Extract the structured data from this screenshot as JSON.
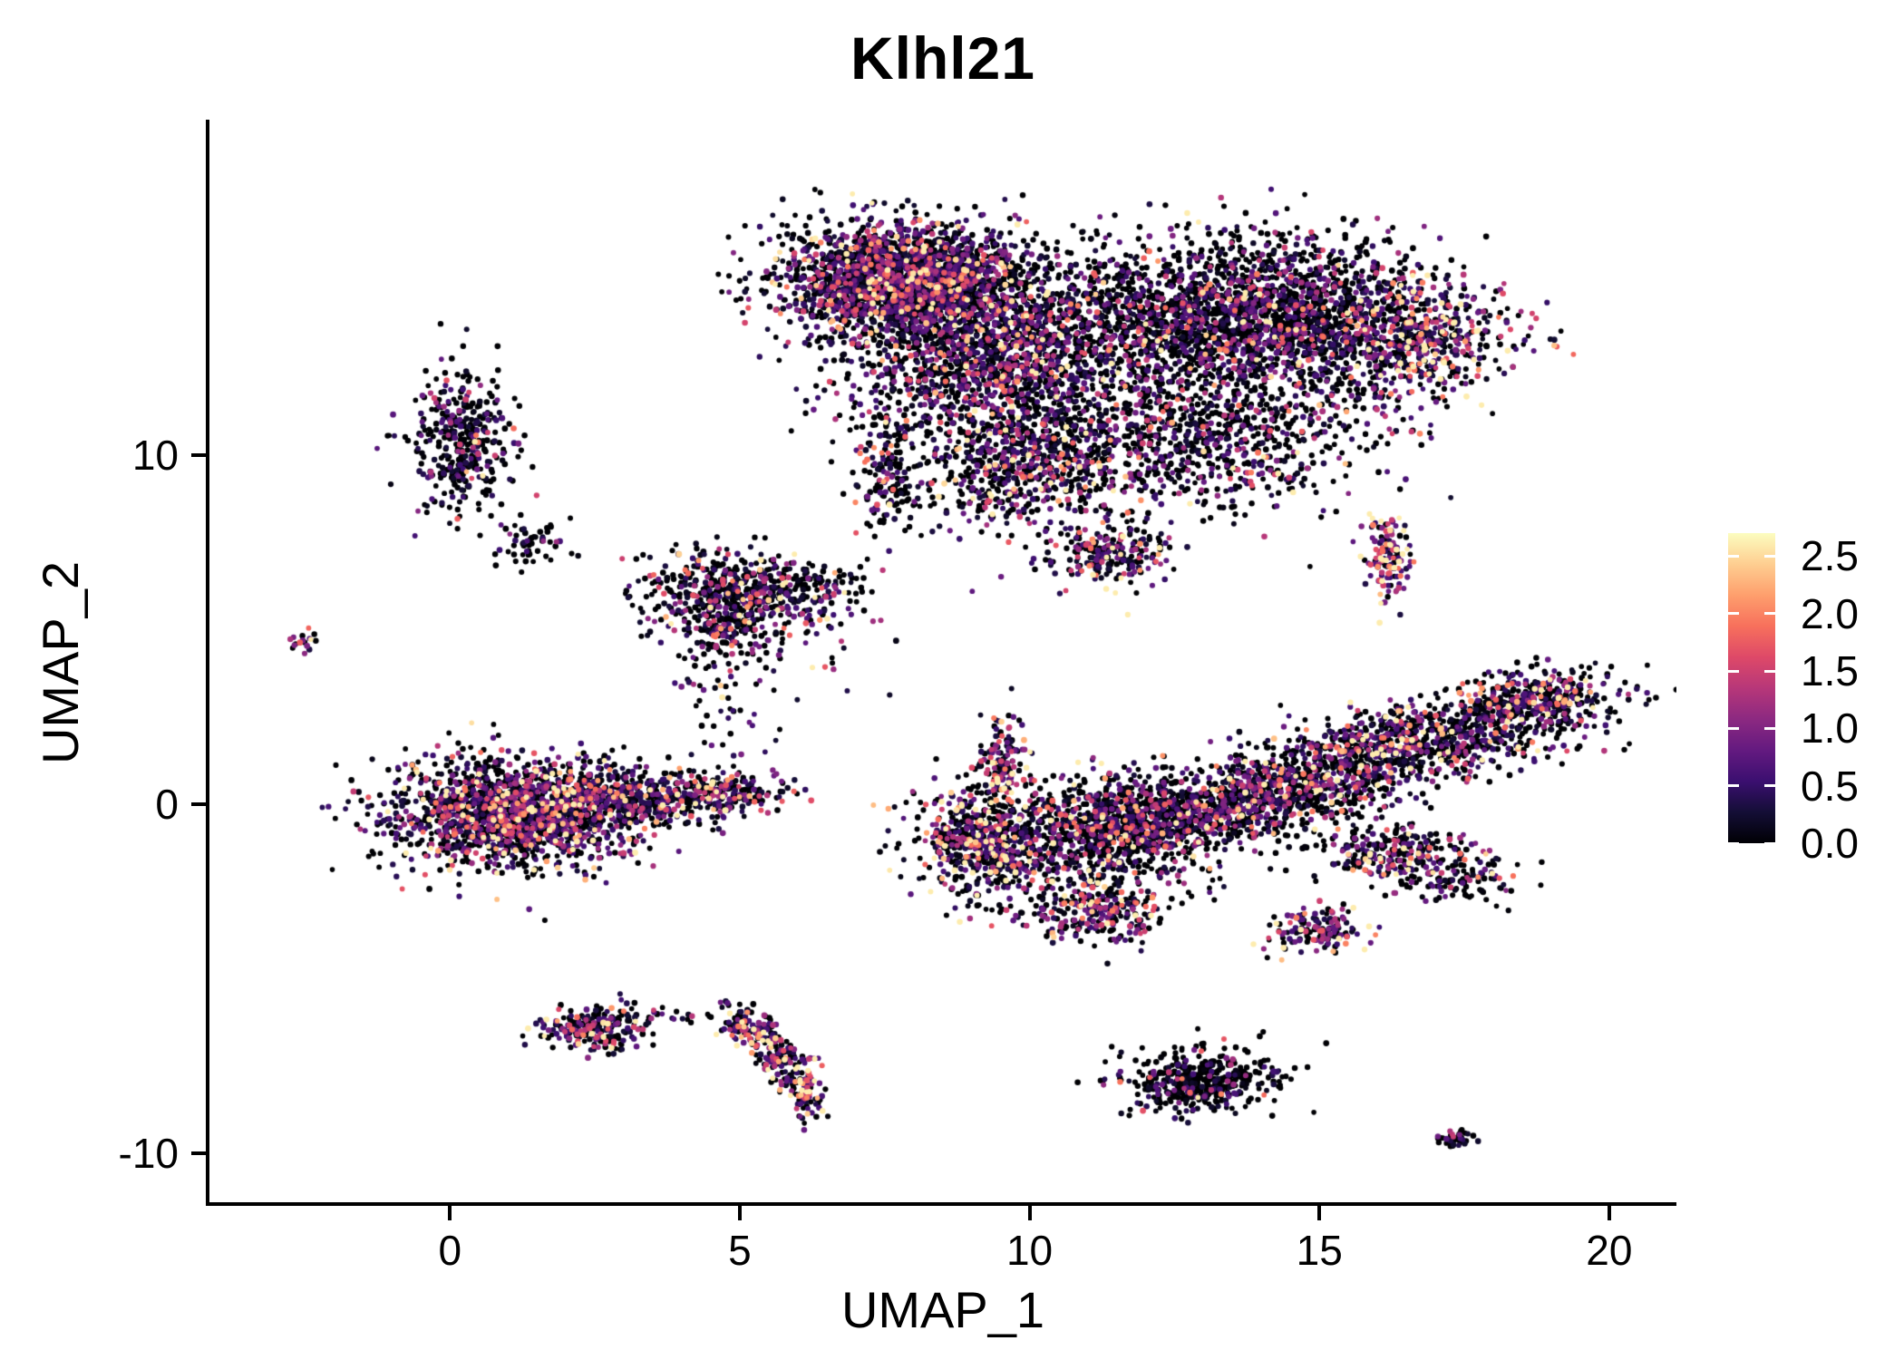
{
  "title": "Klhl21",
  "axes": {
    "x": {
      "label": "UMAP_1",
      "ticks": [
        "0",
        "5",
        "10",
        "15",
        "20"
      ],
      "tick_values": [
        0,
        5,
        10,
        15,
        20
      ]
    },
    "y": {
      "label": "UMAP_2",
      "ticks": [
        "10",
        "0",
        "-10"
      ],
      "tick_values": [
        10,
        0,
        -10
      ]
    }
  },
  "legend": {
    "tick_labels": [
      "2.5",
      "2.0",
      "1.5",
      "1.0",
      "0.5",
      "0.0"
    ],
    "tick_values": [
      2.5,
      2.0,
      1.5,
      1.0,
      0.5,
      0.0
    ],
    "value_range": [
      0,
      2.7
    ]
  },
  "style": {
    "background": "#ffffff",
    "axis_color": "#000000",
    "text_color": "#000000",
    "point_radius": 3.1
  },
  "chart_data": {
    "type": "scatter",
    "title": "Klhl21",
    "xlabel": "UMAP_1",
    "ylabel": "UMAP_2",
    "xlim": [
      -4.15,
      21.16
    ],
    "ylim": [
      -11.4,
      19.5
    ],
    "grid": false,
    "legend_position": "right",
    "color_scale": {
      "name": "magma",
      "domain": [
        0,
        2.7
      ],
      "legend_ticks": [
        0.0,
        0.5,
        1.0,
        1.5,
        2.0,
        2.5
      ],
      "stops": [
        {
          "t": 0.0,
          "color": "#000004"
        },
        {
          "t": 0.1,
          "color": "#140E36"
        },
        {
          "t": 0.2,
          "color": "#3B0F70"
        },
        {
          "t": 0.3,
          "color": "#641A80"
        },
        {
          "t": 0.4,
          "color": "#8C2981"
        },
        {
          "t": 0.5,
          "color": "#B73779"
        },
        {
          "t": 0.6,
          "color": "#DE4968"
        },
        {
          "t": 0.7,
          "color": "#F7705C"
        },
        {
          "t": 0.8,
          "color": "#FE9F6D"
        },
        {
          "t": 0.9,
          "color": "#FECE91"
        },
        {
          "t": 1.0,
          "color": "#FCFDBF"
        }
      ]
    },
    "representation": "gaussian_mixture_summary_of_point_cloud",
    "clusters": [
      {
        "name": "top-lobe-left-core",
        "shape": "gauss",
        "cx": 7.8,
        "cy": 15.0,
        "sx": 1.0,
        "sy": 0.85,
        "rot": 0,
        "n": 2200,
        "p_zero": 0.38,
        "expr_mean": 0.7,
        "expr_base": 0
      },
      {
        "name": "top-lobe-left-lower",
        "shape": "gauss",
        "cx": 9.6,
        "cy": 12.9,
        "sx": 1.35,
        "sy": 1.35,
        "rot": 0,
        "n": 1800,
        "p_zero": 0.45,
        "expr_mean": 0.7,
        "expr_base": 0
      },
      {
        "name": "top-lobe-right",
        "shape": "gauss",
        "cx": 13.8,
        "cy": 14.0,
        "sx": 1.5,
        "sy": 1.1,
        "rot": -0.12,
        "n": 2200,
        "p_zero": 0.55,
        "expr_mean": 0.65,
        "expr_base": 0
      },
      {
        "name": "top-right-edge",
        "shape": "gauss",
        "cx": 16.6,
        "cy": 13.3,
        "sx": 0.85,
        "sy": 0.85,
        "rot": 0,
        "n": 550,
        "p_zero": 0.3,
        "expr_mean": 1.0,
        "expr_base": 0.1
      },
      {
        "name": "top-bridge-lower",
        "shape": "gauss",
        "cx": 12.8,
        "cy": 10.4,
        "sx": 1.6,
        "sy": 1.0,
        "rot": 0.1,
        "n": 900,
        "p_zero": 0.5,
        "expr_mean": 0.8,
        "expr_base": 0
      },
      {
        "name": "top-lower-middle",
        "shape": "gauss",
        "cx": 9.7,
        "cy": 9.7,
        "sx": 0.75,
        "sy": 0.95,
        "rot": 0,
        "n": 500,
        "p_zero": 0.45,
        "expr_mean": 0.85,
        "expr_base": 0
      },
      {
        "name": "top-tail",
        "shape": "gauss",
        "cx": 7.55,
        "cy": 9.6,
        "sx": 0.3,
        "sy": 0.9,
        "rot": 0,
        "n": 180,
        "p_zero": 0.5,
        "expr_mean": 0.7,
        "expr_base": 0
      },
      {
        "name": "top-hook-bottom",
        "shape": "gauss",
        "cx": 11.3,
        "cy": 7.2,
        "sx": 0.6,
        "sy": 0.45,
        "rot": 0.15,
        "n": 230,
        "p_zero": 0.38,
        "expr_mean": 1.0,
        "expr_base": 0
      },
      {
        "name": "left-small-tall",
        "shape": "gauss",
        "cx": 0.2,
        "cy": 10.4,
        "sx": 0.4,
        "sy": 1.0,
        "rot": 0,
        "n": 380,
        "p_zero": 0.55,
        "expr_mean": 0.6,
        "expr_base": 0
      },
      {
        "name": "tiny-far-left",
        "shape": "gauss",
        "cx": -2.55,
        "cy": 4.7,
        "sx": 0.12,
        "sy": 0.16,
        "rot": 0,
        "n": 18,
        "p_zero": 0.35,
        "expr_mean": 0.9,
        "expr_base": 0
      },
      {
        "name": "sparse-upper-left",
        "shape": "gauss",
        "cx": 1.4,
        "cy": 7.5,
        "sx": 0.35,
        "sy": 0.35,
        "rot": 0,
        "n": 55,
        "p_zero": 0.75,
        "expr_mean": 0.45,
        "expr_base": 0
      },
      {
        "name": "mid-left-cluster",
        "shape": "gauss",
        "cx": 5.1,
        "cy": 6.0,
        "sx": 0.95,
        "sy": 0.6,
        "rot": -0.1,
        "n": 650,
        "p_zero": 0.45,
        "expr_mean": 0.85,
        "expr_base": 0
      },
      {
        "name": "mid-left-dangle",
        "shape": "gauss",
        "cx": 4.75,
        "cy": 4.9,
        "sx": 0.3,
        "sy": 0.4,
        "rot": 0,
        "n": 90,
        "p_zero": 0.5,
        "expr_mean": 0.7,
        "expr_base": 0
      },
      {
        "name": "mid-sparse-trail",
        "shape": "gauss",
        "cx": 4.6,
        "cy": 3.2,
        "sx": 0.4,
        "sy": 1.1,
        "rot": 0,
        "n": 60,
        "p_zero": 0.6,
        "expr_mean": 0.6,
        "expr_base": 0
      },
      {
        "name": "mid-noise",
        "shape": "gauss",
        "cx": 6.0,
        "cy": 3.8,
        "sx": 1.0,
        "sy": 1.2,
        "rot": 0,
        "n": 25,
        "p_zero": 0.6,
        "expr_mean": 0.6,
        "expr_base": 0
      },
      {
        "name": "left-main-blob",
        "shape": "gauss",
        "cx": 1.1,
        "cy": -0.25,
        "sx": 1.05,
        "sy": 0.78,
        "rot": 0,
        "n": 1700,
        "p_zero": 0.38,
        "expr_mean": 0.9,
        "expr_base": 0
      },
      {
        "name": "left-main-right",
        "shape": "gauss",
        "cx": 3.3,
        "cy": 0.15,
        "sx": 1.0,
        "sy": 0.42,
        "rot": 0.1,
        "n": 500,
        "p_zero": 0.42,
        "expr_mean": 0.85,
        "expr_base": 0
      },
      {
        "name": "left-main-tail",
        "shape": "gauss",
        "cx": 4.8,
        "cy": 0.35,
        "sx": 0.45,
        "sy": 0.25,
        "rot": 0,
        "n": 120,
        "p_zero": 0.45,
        "expr_mean": 0.8,
        "expr_base": 0
      },
      {
        "name": "center-arm",
        "shape": "gauss",
        "cx": 9.55,
        "cy": 1.3,
        "sx": 0.22,
        "sy": 0.55,
        "rot": 0,
        "n": 130,
        "p_zero": 0.3,
        "expr_mean": 1.1,
        "expr_base": 0
      },
      {
        "name": "center-left-blob",
        "shape": "gauss",
        "cx": 9.2,
        "cy": -1.05,
        "sx": 0.6,
        "sy": 0.85,
        "rot": 0,
        "n": 650,
        "p_zero": 0.38,
        "expr_mean": 0.95,
        "expr_base": 0
      },
      {
        "name": "center-mid-blob",
        "shape": "gauss",
        "cx": 11.5,
        "cy": -0.7,
        "sx": 0.85,
        "sy": 0.8,
        "rot": 0,
        "n": 900,
        "p_zero": 0.52,
        "expr_mean": 0.75,
        "expr_base": 0
      },
      {
        "name": "center-lower-tail",
        "shape": "gauss",
        "cx": 11.15,
        "cy": -3.0,
        "sx": 0.6,
        "sy": 0.5,
        "rot": 0.3,
        "n": 280,
        "p_zero": 0.38,
        "expr_mean": 1.0,
        "expr_base": 0
      },
      {
        "name": "center-bridge",
        "shape": "gauss",
        "cx": 13.0,
        "cy": -0.3,
        "sx": 0.8,
        "sy": 0.55,
        "rot": 0.2,
        "n": 400,
        "p_zero": 0.5,
        "expr_mean": 0.8,
        "expr_base": 0
      },
      {
        "name": "right-band-left",
        "shape": "gauss",
        "cx": 14.5,
        "cy": 0.5,
        "sx": 1.0,
        "sy": 0.55,
        "rot": 0.4,
        "n": 550,
        "p_zero": 0.42,
        "expr_mean": 0.9,
        "expr_base": 0
      },
      {
        "name": "right-band-main",
        "shape": "gauss",
        "cx": 16.8,
        "cy": 1.8,
        "sx": 1.5,
        "sy": 0.55,
        "rot": 0.45,
        "n": 900,
        "p_zero": 0.42,
        "expr_mean": 0.9,
        "expr_base": 0
      },
      {
        "name": "right-band-tip",
        "shape": "gauss",
        "cx": 18.7,
        "cy": 3.05,
        "sx": 0.75,
        "sy": 0.4,
        "rot": 0.35,
        "n": 350,
        "p_zero": 0.45,
        "expr_mean": 0.9,
        "expr_base": 0
      },
      {
        "name": "right-hook",
        "shape": "gauss",
        "cx": 16.35,
        "cy": -1.45,
        "sx": 0.7,
        "sy": 0.4,
        "rot": -0.2,
        "n": 280,
        "p_zero": 0.45,
        "expr_mean": 0.85,
        "expr_base": 0
      },
      {
        "name": "right-hook-lower",
        "shape": "gauss",
        "cx": 17.5,
        "cy": -2.3,
        "sx": 0.5,
        "sy": 0.3,
        "rot": 0.2,
        "n": 90,
        "p_zero": 0.5,
        "expr_mean": 0.8,
        "expr_base": 0
      },
      {
        "name": "small-right-vertical",
        "shape": "gauss",
        "cx": 16.2,
        "cy": 6.95,
        "sx": 0.2,
        "sy": 0.58,
        "rot": 0,
        "n": 130,
        "p_zero": 0.15,
        "expr_mean": 1.2,
        "expr_base": 0.3
      },
      {
        "name": "small-mid-lower",
        "shape": "gauss",
        "cx": 15.0,
        "cy": -3.6,
        "sx": 0.42,
        "sy": 0.3,
        "rot": 0.2,
        "n": 150,
        "p_zero": 0.3,
        "expr_mean": 1.0,
        "expr_base": 0
      },
      {
        "name": "bottom-left-blob",
        "shape": "gauss",
        "cx": 2.5,
        "cy": -6.4,
        "sx": 0.45,
        "sy": 0.33,
        "rot": 0,
        "n": 220,
        "p_zero": 0.35,
        "expr_mean": 1.0,
        "expr_base": 0
      },
      {
        "name": "bottom-left-trail",
        "shape": "gauss",
        "cx": 3.9,
        "cy": -6.1,
        "sx": 0.8,
        "sy": 0.15,
        "rot": 0,
        "n": 30,
        "p_zero": 0.55,
        "expr_mean": 0.7,
        "expr_base": 0
      },
      {
        "name": "bottom-hook-arc",
        "shape": "arc",
        "from": [
          4.85,
          -6.15
        ],
        "ctrl": [
          5.5,
          -6.3
        ],
        "to": [
          6.25,
          -8.75
        ],
        "jitter": 0.16,
        "n": 260,
        "p_zero": 0.32,
        "expr_mean": 1.0,
        "expr_base": 0
      },
      {
        "name": "bottom-hook-tip",
        "shape": "gauss",
        "cx": 6.15,
        "cy": -7.9,
        "sx": 0.18,
        "sy": 0.45,
        "rot": 0,
        "n": 60,
        "p_zero": 0.2,
        "expr_mean": 1.4,
        "expr_base": 0.2
      },
      {
        "name": "bottom-center-blob",
        "shape": "gauss",
        "cx": 12.9,
        "cy": -7.9,
        "sx": 0.7,
        "sy": 0.45,
        "rot": 0.35,
        "n": 480,
        "p_zero": 0.68,
        "expr_mean": 0.55,
        "expr_base": 0
      },
      {
        "name": "bottom-right-tiny",
        "shape": "gauss",
        "cx": 17.3,
        "cy": -9.6,
        "sx": 0.18,
        "sy": 0.12,
        "rot": 0,
        "n": 40,
        "p_zero": 0.55,
        "expr_mean": 0.7,
        "expr_base": 0
      }
    ]
  }
}
